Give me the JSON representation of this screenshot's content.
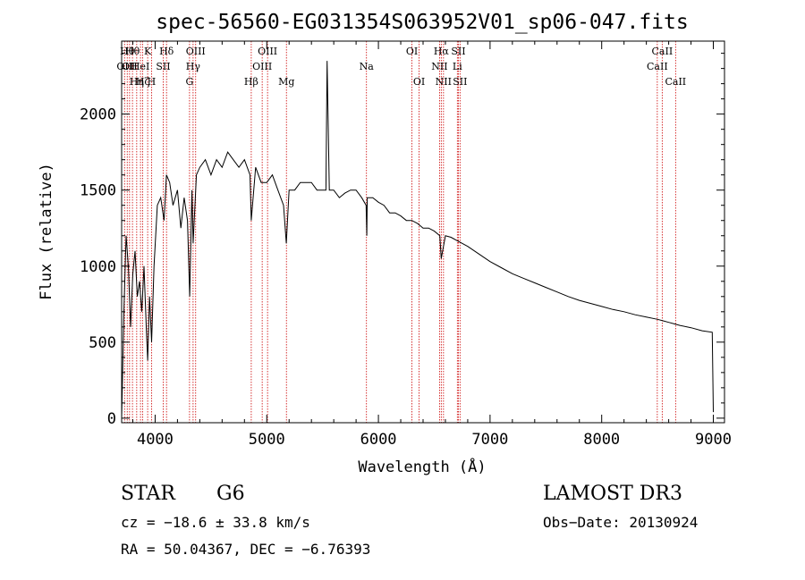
{
  "chart_data": {
    "type": "line",
    "title": "spec-56560-EG031354S063952V01_sp06-047.fits",
    "xlabel": "Wavelength (Å)",
    "ylabel": "Flux (relative)",
    "xlim": [
      3700,
      9100
    ],
    "ylim": [
      -30,
      2480
    ],
    "x_ticks": [
      4000,
      5000,
      6000,
      7000,
      8000,
      9000
    ],
    "y_ticks": [
      0,
      500,
      1000,
      1500,
      2000
    ],
    "grid": false,
    "series": [
      {
        "x": [
          3700,
          3720,
          3740,
          3760,
          3780,
          3800,
          3820,
          3840,
          3860,
          3880,
          3900,
          3920,
          3933,
          3950,
          3968,
          3990,
          4020,
          4050,
          4080,
          4101,
          4130,
          4160,
          4200,
          4230,
          4260,
          4290,
          4310,
          4330,
          4340,
          4370,
          4400,
          4450,
          4500,
          4550,
          4600,
          4650,
          4700,
          4750,
          4800,
          4850,
          4861,
          4900,
          4950,
          5000,
          5050,
          5100,
          5150,
          5175,
          5200,
          5250,
          5300,
          5350,
          5400,
          5450,
          5500,
          5530,
          5540,
          5560,
          5600,
          5650,
          5700,
          5750,
          5800,
          5850,
          5890,
          5896,
          5900,
          5950,
          6000,
          6050,
          6100,
          6150,
          6200,
          6250,
          6300,
          6350,
          6400,
          6450,
          6500,
          6550,
          6563,
          6600,
          6650,
          6700,
          6750,
          6800,
          6900,
          7000,
          7100,
          7200,
          7300,
          7400,
          7500,
          7600,
          7700,
          7800,
          7900,
          8000,
          8100,
          8200,
          8300,
          8400,
          8500,
          8550,
          8600,
          8650,
          8700,
          8800,
          8900,
          8990,
          9000
        ],
        "values": [
          0,
          700,
          1200,
          1000,
          600,
          950,
          1100,
          800,
          900,
          700,
          1000,
          600,
          380,
          800,
          500,
          1000,
          1400,
          1450,
          1300,
          1600,
          1550,
          1400,
          1500,
          1250,
          1450,
          1300,
          800,
          1500,
          1150,
          1600,
          1650,
          1700,
          1600,
          1700,
          1650,
          1750,
          1700,
          1650,
          1700,
          1600,
          1300,
          1650,
          1550,
          1550,
          1600,
          1500,
          1400,
          1150,
          1500,
          1500,
          1550,
          1550,
          1550,
          1500,
          1500,
          1500,
          2350,
          1500,
          1500,
          1450,
          1480,
          1500,
          1500,
          1450,
          1400,
          1200,
          1450,
          1450,
          1420,
          1400,
          1350,
          1350,
          1330,
          1300,
          1300,
          1280,
          1250,
          1250,
          1230,
          1200,
          1050,
          1200,
          1190,
          1170,
          1150,
          1130,
          1080,
          1030,
          990,
          950,
          920,
          890,
          860,
          830,
          800,
          775,
          755,
          735,
          715,
          700,
          680,
          665,
          650,
          640,
          630,
          620,
          610,
          595,
          575,
          565,
          40
        ]
      }
    ],
    "lines": [
      {
        "wavelength": 3726,
        "label": "OII",
        "row": 2
      },
      {
        "wavelength": 3750,
        "label": "Hθ",
        "row": 1
      },
      {
        "wavelength": 3771,
        "label": "OII",
        "row": 2
      },
      {
        "wavelength": 3797,
        "label": "Hθ",
        "row": 1
      },
      {
        "wavelength": 3835,
        "label": "Hη",
        "row": 3
      },
      {
        "wavelength": 3869,
        "label": "HeI",
        "row": 2
      },
      {
        "wavelength": 3889,
        "label": "Hζ",
        "row": 3
      },
      {
        "wavelength": 3933,
        "label": "K",
        "row": 1
      },
      {
        "wavelength": 3968,
        "label": "H",
        "row": 3
      },
      {
        "wavelength": 4072,
        "label": "SII",
        "row": 2
      },
      {
        "wavelength": 4102,
        "label": "Hδ",
        "row": 1
      },
      {
        "wavelength": 4308,
        "label": "G",
        "row": 3
      },
      {
        "wavelength": 4340,
        "label": "Hγ",
        "row": 2
      },
      {
        "wavelength": 4363,
        "label": "OIII",
        "row": 1
      },
      {
        "wavelength": 4861,
        "label": "Hβ",
        "row": 3
      },
      {
        "wavelength": 4959,
        "label": "OIII",
        "row": 2
      },
      {
        "wavelength": 5007,
        "label": "OIII",
        "row": 1
      },
      {
        "wavelength": 5176,
        "label": "Mg",
        "row": 3
      },
      {
        "wavelength": 5893,
        "label": "Na",
        "row": 2
      },
      {
        "wavelength": 6300,
        "label": "OI",
        "row": 1
      },
      {
        "wavelength": 6364,
        "label": "OI",
        "row": 3
      },
      {
        "wavelength": 6548,
        "label": "NII",
        "row": 2
      },
      {
        "wavelength": 6563,
        "label": "Hα",
        "row": 1
      },
      {
        "wavelength": 6583,
        "label": "NII",
        "row": 3
      },
      {
        "wavelength": 6707,
        "label": "Li",
        "row": 2
      },
      {
        "wavelength": 6716,
        "label": "SII",
        "row": 1
      },
      {
        "wavelength": 6731,
        "label": "SII",
        "row": 3
      },
      {
        "wavelength": 8498,
        "label": "CaII",
        "row": 2
      },
      {
        "wavelength": 8542,
        "label": "CaII",
        "row": 1
      },
      {
        "wavelength": 8662,
        "label": "CaII",
        "row": 3
      }
    ]
  },
  "info": {
    "class": "STAR",
    "subclass": "G6",
    "survey": "LAMOST DR3",
    "cz": "cz = −18.6 ± 33.8 km/s",
    "obs_date": "Obs−Date: 20130924",
    "radec": "RA =  50.04367, DEC =  −6.76393"
  },
  "colors": {
    "line_marker": "#cc0000",
    "spectrum": "#000000"
  }
}
